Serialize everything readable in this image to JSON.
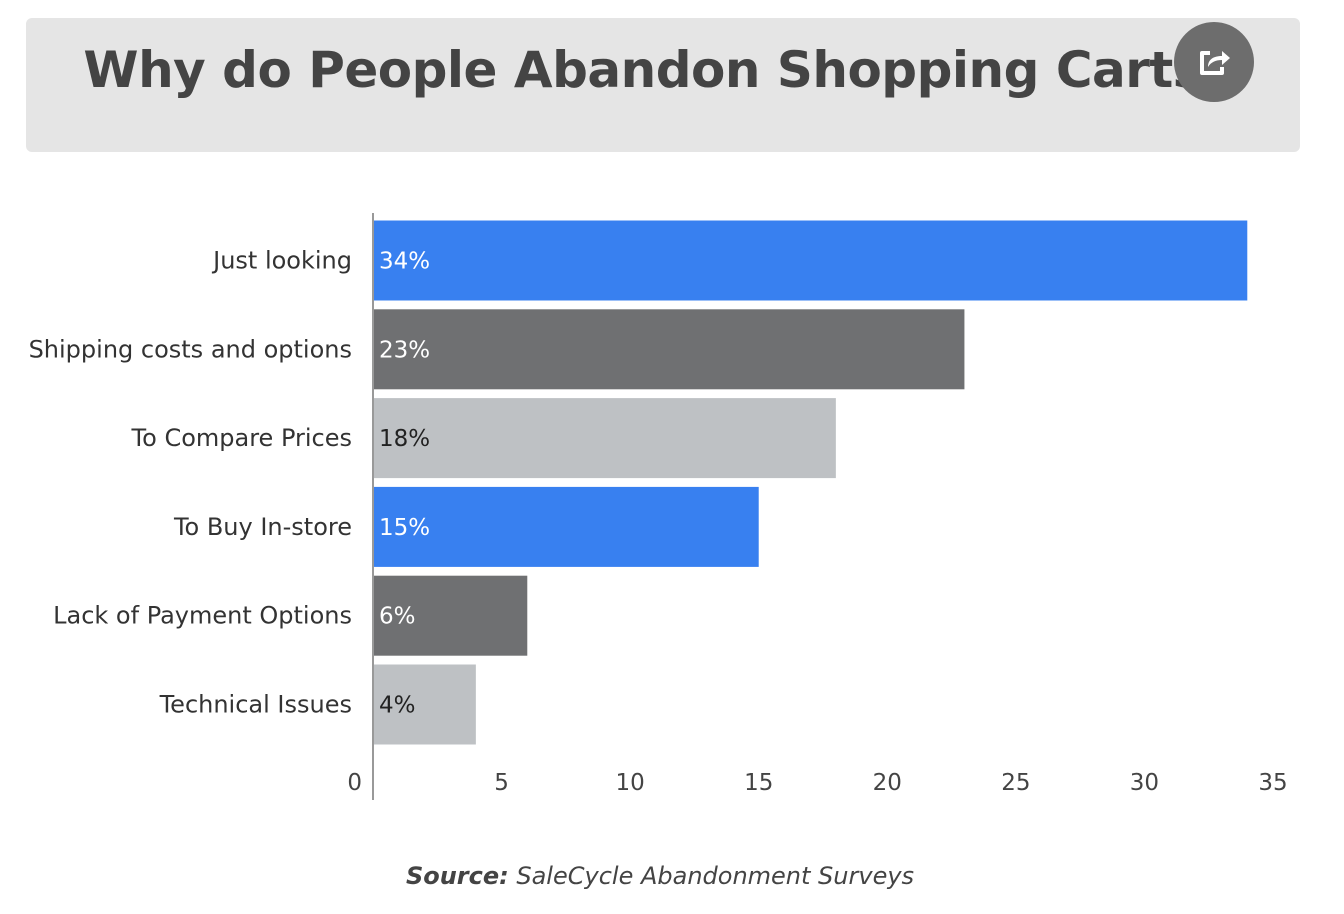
{
  "header": {
    "title": "Why do People Abandon Shopping Carts?",
    "share_icon": "share-icon"
  },
  "chart_data": {
    "type": "bar",
    "orientation": "horizontal",
    "title": "Why do People Abandon Shopping Carts?",
    "categories": [
      "Just looking",
      "Shipping costs and options",
      "To Compare Prices",
      "To Buy In-store",
      "Lack of Payment Options",
      "Technical Issues"
    ],
    "values": [
      34,
      23,
      18,
      15,
      6,
      4
    ],
    "bar_lengths": [
      34,
      23,
      18,
      15,
      6,
      4
    ],
    "data_labels": [
      "34%",
      "23%",
      "18%",
      "15%",
      "6%",
      "4%"
    ],
    "bar_colors": [
      "#3880f0",
      "#6f7072",
      "#bec1c4",
      "#3880f0",
      "#6f7072",
      "#bec1c4"
    ],
    "label_colors": [
      "#ffffff",
      "#ffffff",
      "#222222",
      "#ffffff",
      "#ffffff",
      "#222222"
    ],
    "xlim": [
      0,
      35
    ],
    "xticks": [
      0,
      5,
      10,
      15,
      20,
      25,
      30,
      35
    ],
    "xlabel": "",
    "ylabel": "",
    "grid": false,
    "legend": "none"
  },
  "source": {
    "label": "Source:",
    "text": " SaleCycle Abandonment Surveys"
  },
  "colors": {
    "header_bg": "#e5e5e5",
    "title": "#444444",
    "axis": "#999999",
    "tick_text": "#444444"
  }
}
